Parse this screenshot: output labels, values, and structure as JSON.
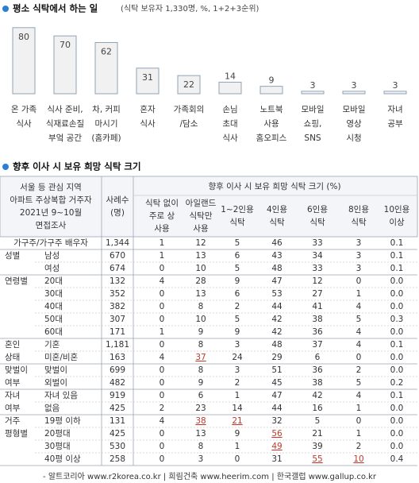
{
  "chart_data": {
    "type": "bar",
    "title": "평소 식탁에서 하는 일",
    "subtitle": "(식탁 보유자 1,330명, %, 1+2+3순위)",
    "color": "#f1f1f1",
    "edge_color": "#8fa3b8",
    "categories": [
      [
        "온 가족",
        "식사"
      ],
      [
        "식사 준비,",
        "식재료손질",
        "부엌 공간"
      ],
      [
        "차, 커피",
        "마시기",
        "(홈카페)"
      ],
      [
        "혼자",
        "식사"
      ],
      [
        "가족회의",
        "/담소"
      ],
      [
        "손님",
        "초대",
        "식사"
      ],
      [
        "노트북",
        "사용",
        "홈오피스"
      ],
      [
        "모바일",
        "쇼핑,",
        "SNS"
      ],
      [
        "모바일",
        "영상",
        "시청"
      ],
      [
        "자녀",
        "공부"
      ]
    ],
    "values": [
      80,
      70,
      62,
      31,
      22,
      14,
      9,
      3,
      3,
      3
    ]
  },
  "table": {
    "title": "향후 이사 시 보유 희망 식탁 크기",
    "corner": [
      "서울 등 관심 지역",
      "아파트 주상복합 거주자",
      "2021년 9~10월",
      "면접조사"
    ],
    "count_header": [
      "사례수",
      "(명)"
    ],
    "group_header": "향후 이사 시 보유 희망 식탁 크기 (%)",
    "columns": [
      [
        "식탁 없이",
        "주로 상",
        "사용"
      ],
      [
        "아일랜드",
        "식탁만",
        "사용"
      ],
      [
        "1~2인용",
        "식탁"
      ],
      [
        "4인용",
        "식탁"
      ],
      [
        "6인용",
        "식탁"
      ],
      [
        "8인용",
        "식탁"
      ],
      [
        "10인용",
        "이상"
      ]
    ],
    "groups": [
      {
        "label": [
          "가구주/가구주 배우자"
        ],
        "rows": [
          {
            "cells": [
              "1,344",
              "1",
              "12",
              "5",
              "46",
              "33",
              "3",
              "0.1"
            ]
          }
        ]
      },
      {
        "label": [
          "성별"
        ],
        "rows": [
          {
            "label": "남성",
            "cells": [
              "670",
              "1",
              "13",
              "6",
              "43",
              "34",
              "3",
              "0.1"
            ]
          },
          {
            "label": "여성",
            "cells": [
              "674",
              "0",
              "10",
              "5",
              "48",
              "33",
              "3",
              "0.1"
            ]
          }
        ]
      },
      {
        "label": [
          "연령별"
        ],
        "rows": [
          {
            "label": "20대",
            "cells": [
              "132",
              "4",
              "28",
              "9",
              "47",
              "12",
              "0",
              "0.0"
            ]
          },
          {
            "label": "30대",
            "cells": [
              "352",
              "0",
              "13",
              "6",
              "53",
              "27",
              "1",
              "0.0"
            ]
          },
          {
            "label": "40대",
            "cells": [
              "382",
              "0",
              "8",
              "2",
              "44",
              "41",
              "4",
              "0.0"
            ]
          },
          {
            "label": "50대",
            "cells": [
              "307",
              "0",
              "10",
              "5",
              "42",
              "38",
              "5",
              "0.3"
            ]
          },
          {
            "label": "60대",
            "cells": [
              "171",
              "1",
              "9",
              "9",
              "42",
              "36",
              "4",
              "0.0"
            ]
          }
        ]
      },
      {
        "label": [
          "혼인",
          "상태"
        ],
        "rows": [
          {
            "label": "기혼",
            "cells": [
              "1,181",
              "0",
              "8",
              "3",
              "48",
              "37",
              "4",
              "0.1"
            ]
          },
          {
            "label": "미혼/비혼",
            "cells": [
              "163",
              "4",
              "37",
              "24",
              "29",
              "6",
              "0",
              "0.0"
            ],
            "highlight": [
              2
            ]
          }
        ]
      },
      {
        "label": [
          "맞벌이",
          "여부"
        ],
        "rows": [
          {
            "label": "맞벌이",
            "cells": [
              "699",
              "0",
              "8",
              "3",
              "51",
              "36",
              "2",
              "0.0"
            ]
          },
          {
            "label": "외벌이",
            "cells": [
              "482",
              "0",
              "9",
              "2",
              "45",
              "38",
              "5",
              "0.2"
            ]
          }
        ]
      },
      {
        "label": [
          "자녀",
          "여부"
        ],
        "rows": [
          {
            "label": "자녀 있음",
            "cells": [
              "919",
              "0",
              "6",
              "1",
              "47",
              "42",
              "4",
              "0.1"
            ]
          },
          {
            "label": "없음",
            "cells": [
              "425",
              "2",
              "23",
              "14",
              "44",
              "16",
              "1",
              "0.0"
            ]
          }
        ]
      },
      {
        "label": [
          "거주",
          "평형별"
        ],
        "rows": [
          {
            "label": "19평 이하",
            "cells": [
              "131",
              "4",
              "38",
              "21",
              "32",
              "5",
              "0",
              "0.0"
            ],
            "highlight": [
              2,
              3
            ]
          },
          {
            "label": "20평대",
            "cells": [
              "425",
              "0",
              "13",
              "9",
              "56",
              "21",
              "1",
              "0.0"
            ],
            "highlight": [
              4
            ]
          },
          {
            "label": "30평대",
            "cells": [
              "530",
              "0",
              "8",
              "1",
              "49",
              "39",
              "2",
              "0.0"
            ],
            "highlight": [
              4
            ]
          },
          {
            "label": "40평 이상",
            "cells": [
              "258",
              "0",
              "3",
              "0",
              "31",
              "55",
              "10",
              "0.4"
            ],
            "highlight": [
              5,
              6
            ]
          }
        ]
      }
    ]
  },
  "footer": "- 알트코리아 www.r2korea.co.kr | 희림건축 www.heerim.com | 한국갤럽 www.gallup.co.kr"
}
